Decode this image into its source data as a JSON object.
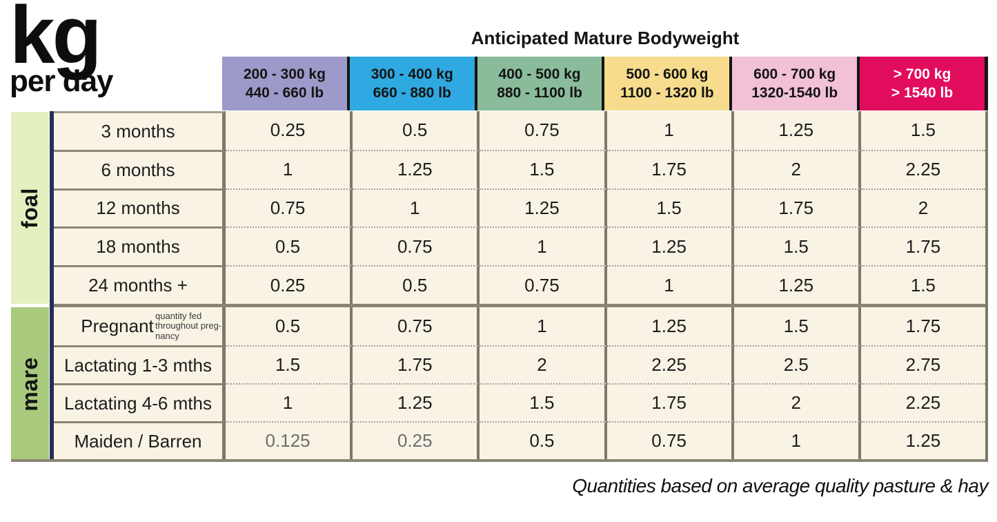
{
  "unit": {
    "big": "kg",
    "small": "per day"
  },
  "header": {
    "title": "Anticipated Mature Bodyweight",
    "columns": [
      {
        "kg": "200 - 300 kg",
        "lb": "440 - 660 lb",
        "bg": "#9d99c8",
        "text": "#141414"
      },
      {
        "kg": "300 - 400 kg",
        "lb": "660 - 880 lb",
        "bg": "#2fa9e1",
        "text": "#141414"
      },
      {
        "kg": "400 - 500 kg",
        "lb": "880 - 1100 lb",
        "bg": "#8abc9b",
        "text": "#141414"
      },
      {
        "kg": "500 - 600 kg",
        "lb": "1100 - 1320 lb",
        "bg": "#f7dc8e",
        "text": "#141414"
      },
      {
        "kg": "600 - 700 kg",
        "lb": "1320-1540 lb",
        "bg": "#f2c1d6",
        "text": "#141414"
      },
      {
        "kg": "> 700 kg",
        "lb": "> 1540 lb",
        "bg": "#e20c5c",
        "text": "#ffffff"
      }
    ]
  },
  "sections": [
    {
      "label": "foal",
      "strip_color": "#e5f0c0",
      "rows": [
        {
          "label": "3 months",
          "values": [
            "0.25",
            "0.5",
            "0.75",
            "1",
            "1.25",
            "1.5"
          ]
        },
        {
          "label": "6 months",
          "values": [
            "1",
            "1.25",
            "1.5",
            "1.75",
            "2",
            "2.25"
          ]
        },
        {
          "label": "12 months",
          "values": [
            "0.75",
            "1",
            "1.25",
            "1.5",
            "1.75",
            "2"
          ]
        },
        {
          "label": "18 months",
          "values": [
            "0.5",
            "0.75",
            "1",
            "1.25",
            "1.5",
            "1.75"
          ]
        },
        {
          "label": "24 months +",
          "values": [
            "0.25",
            "0.5",
            "0.75",
            "1",
            "1.25",
            "1.5"
          ]
        }
      ]
    },
    {
      "label": "mare",
      "strip_color": "#a9ca7d",
      "rows": [
        {
          "label": "Pregnant",
          "note": "quantity fed throughout preg-nancy",
          "values": [
            "0.5",
            "0.75",
            "1",
            "1.25",
            "1.5",
            "1.75"
          ]
        },
        {
          "label": "Lactating 1-3 mths",
          "values": [
            "1.5",
            "1.75",
            "2",
            "2.25",
            "2.5",
            "2.75"
          ]
        },
        {
          "label": "Lactating 4-6 mths",
          "values": [
            "1",
            "1.25",
            "1.5",
            "1.75",
            "2",
            "2.25"
          ]
        },
        {
          "label": "Maiden / Barren",
          "values": [
            "0.125",
            "0.25",
            "0.5",
            "0.75",
            "1",
            "1.25"
          ],
          "muted": [
            0,
            1
          ]
        }
      ]
    }
  ],
  "footer": {
    "caption": "Quantities based on average quality pasture & hay"
  },
  "palette": {
    "cell_bg": "#f9f3e6",
    "table_line": "#7e786b",
    "section_line": "#8b8476",
    "label_line": "#8a8577",
    "dotted_line": "#a29f97",
    "navy_bar": "#272e55",
    "muted_text": "#6e6e6e",
    "header_separator": "#141414"
  },
  "chart_data": {
    "type": "table",
    "title": "kg per day — Anticipated Mature Bodyweight",
    "column_headers": [
      "200 - 300 kg / 440 - 660 lb",
      "300 - 400 kg / 660 - 880 lb",
      "400 - 500 kg / 880 - 1100 lb",
      "500 - 600 kg / 1100 - 1320 lb",
      "600 - 700 kg / 1320-1540 lb",
      "> 700 kg / > 1540 lb"
    ],
    "row_groups": [
      {
        "group": "foal",
        "rows": [
          {
            "label": "3 months",
            "values": [
              0.25,
              0.5,
              0.75,
              1,
              1.25,
              1.5
            ]
          },
          {
            "label": "6 months",
            "values": [
              1,
              1.25,
              1.5,
              1.75,
              2,
              2.25
            ]
          },
          {
            "label": "12 months",
            "values": [
              0.75,
              1,
              1.25,
              1.5,
              1.75,
              2
            ]
          },
          {
            "label": "18 months",
            "values": [
              0.5,
              0.75,
              1,
              1.25,
              1.5,
              1.75
            ]
          },
          {
            "label": "24 months +",
            "values": [
              0.25,
              0.5,
              0.75,
              1,
              1.25,
              1.5
            ]
          }
        ]
      },
      {
        "group": "mare",
        "rows": [
          {
            "label": "Pregnant (quantity fed throughout pregnancy)",
            "values": [
              0.5,
              0.75,
              1,
              1.25,
              1.5,
              1.75
            ]
          },
          {
            "label": "Lactating 1-3 mths",
            "values": [
              1.5,
              1.75,
              2,
              2.25,
              2.5,
              2.75
            ]
          },
          {
            "label": "Lactating 4-6 mths",
            "values": [
              1,
              1.25,
              1.5,
              1.75,
              2,
              2.25
            ]
          },
          {
            "label": "Maiden / Barren",
            "values": [
              0.125,
              0.25,
              0.5,
              0.75,
              1,
              1.25
            ]
          }
        ]
      }
    ],
    "footnote": "Quantities based on average quality pasture & hay"
  }
}
